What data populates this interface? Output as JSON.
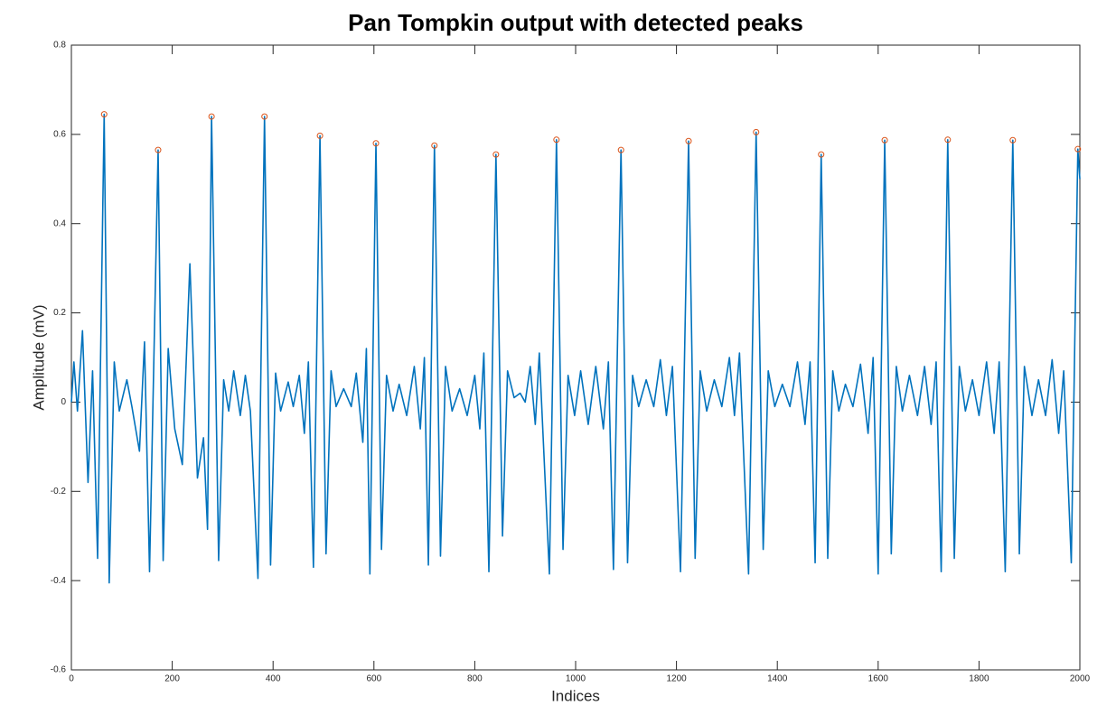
{
  "chart_data": {
    "type": "line",
    "title": "Pan Tompkin output with detected peaks",
    "xlabel": "Indices",
    "ylabel": "Amplitude (mV)",
    "xlim": [
      0,
      2000
    ],
    "xticks": [
      0,
      200,
      400,
      600,
      800,
      1000,
      1200,
      1400,
      1600,
      1800,
      2000
    ],
    "ylim": [
      -0.6,
      0.8
    ],
    "yticks": [
      -0.6,
      -0.4,
      -0.2,
      0,
      0.2,
      0.4,
      0.6,
      0.8
    ],
    "grid": false,
    "series": [
      {
        "type": "line",
        "color": "#0072bd",
        "x": [
          0,
          5,
          12,
          22,
          33,
          42,
          52,
          65,
          75,
          85,
          95,
          110,
          120,
          135,
          145,
          155,
          172,
          182,
          192,
          205,
          220,
          235,
          250,
          262,
          270,
          278,
          292,
          302,
          312,
          322,
          335,
          345,
          355,
          370,
          383,
          395,
          405,
          415,
          430,
          440,
          452,
          462,
          470,
          480,
          493,
          505,
          515,
          525,
          540,
          555,
          565,
          578,
          585,
          592,
          604,
          615,
          625,
          638,
          650,
          665,
          680,
          692,
          700,
          708,
          720,
          732,
          742,
          755,
          770,
          785,
          800,
          810,
          818,
          828,
          842,
          855,
          865,
          878,
          890,
          900,
          910,
          920,
          928,
          948,
          962,
          975,
          985,
          998,
          1010,
          1025,
          1040,
          1055,
          1065,
          1075,
          1090,
          1103,
          1113,
          1125,
          1140,
          1155,
          1168,
          1180,
          1192,
          1208,
          1224,
          1237,
          1247,
          1260,
          1275,
          1290,
          1305,
          1315,
          1325,
          1343,
          1358,
          1372,
          1382,
          1395,
          1410,
          1425,
          1440,
          1455,
          1465,
          1475,
          1487,
          1500,
          1510,
          1522,
          1535,
          1550,
          1565,
          1580,
          1590,
          1600,
          1613,
          1626,
          1636,
          1648,
          1662,
          1678,
          1692,
          1705,
          1715,
          1725,
          1738,
          1751,
          1761,
          1773,
          1787,
          1800,
          1815,
          1830,
          1840,
          1852,
          1867,
          1880,
          1890,
          1905,
          1918,
          1932,
          1945,
          1958,
          1968,
          1983,
          1996,
          2000
        ],
        "values": [
          0.0,
          0.09,
          -0.02,
          0.16,
          -0.18,
          0.07,
          -0.35,
          0.645,
          -0.405,
          0.09,
          -0.02,
          0.05,
          -0.01,
          -0.11,
          0.135,
          -0.38,
          0.565,
          -0.355,
          0.12,
          -0.06,
          -0.14,
          0.31,
          -0.17,
          -0.08,
          -0.285,
          0.64,
          -0.355,
          0.05,
          -0.02,
          0.07,
          -0.03,
          0.06,
          -0.02,
          -0.395,
          0.64,
          -0.365,
          0.065,
          -0.02,
          0.045,
          -0.01,
          0.06,
          -0.07,
          0.09,
          -0.37,
          0.597,
          -0.34,
          0.07,
          -0.01,
          0.03,
          -0.01,
          0.065,
          -0.09,
          0.12,
          -0.385,
          0.58,
          -0.33,
          0.06,
          -0.02,
          0.04,
          -0.03,
          0.08,
          -0.06,
          0.1,
          -0.365,
          0.575,
          -0.345,
          0.08,
          -0.02,
          0.03,
          -0.03,
          0.06,
          -0.06,
          0.11,
          -0.38,
          0.555,
          -0.3,
          0.07,
          0.01,
          0.02,
          0.0,
          0.08,
          -0.05,
          0.11,
          -0.385,
          0.588,
          -0.33,
          0.06,
          -0.03,
          0.07,
          -0.05,
          0.08,
          -0.06,
          0.09,
          -0.375,
          0.565,
          -0.36,
          0.06,
          -0.01,
          0.05,
          -0.01,
          0.095,
          -0.03,
          0.08,
          -0.38,
          0.585,
          -0.35,
          0.07,
          -0.02,
          0.05,
          -0.01,
          0.1,
          -0.03,
          0.11,
          -0.385,
          0.605,
          -0.33,
          0.07,
          -0.01,
          0.04,
          -0.01,
          0.09,
          -0.05,
          0.09,
          -0.36,
          0.555,
          -0.35,
          0.07,
          -0.02,
          0.04,
          -0.01,
          0.085,
          -0.07,
          0.1,
          -0.385,
          0.587,
          -0.34,
          0.08,
          -0.02,
          0.06,
          -0.03,
          0.08,
          -0.05,
          0.09,
          -0.38,
          0.588,
          -0.35,
          0.08,
          -0.02,
          0.05,
          -0.03,
          0.09,
          -0.07,
          0.09,
          -0.38,
          0.587,
          -0.34,
          0.08,
          -0.03,
          0.05,
          -0.03,
          0.095,
          -0.07,
          0.07,
          -0.36,
          0.567,
          0.5
        ]
      },
      {
        "type": "scatter",
        "color": "#d95319",
        "x": [
          65,
          172,
          278,
          383,
          493,
          604,
          720,
          842,
          962,
          1090,
          1224,
          1358,
          1487,
          1613,
          1738,
          1867,
          1996
        ],
        "values": [
          0.645,
          0.565,
          0.64,
          0.64,
          0.597,
          0.58,
          0.575,
          0.555,
          0.588,
          0.565,
          0.585,
          0.605,
          0.555,
          0.587,
          0.588,
          0.587,
          0.567
        ]
      }
    ]
  }
}
